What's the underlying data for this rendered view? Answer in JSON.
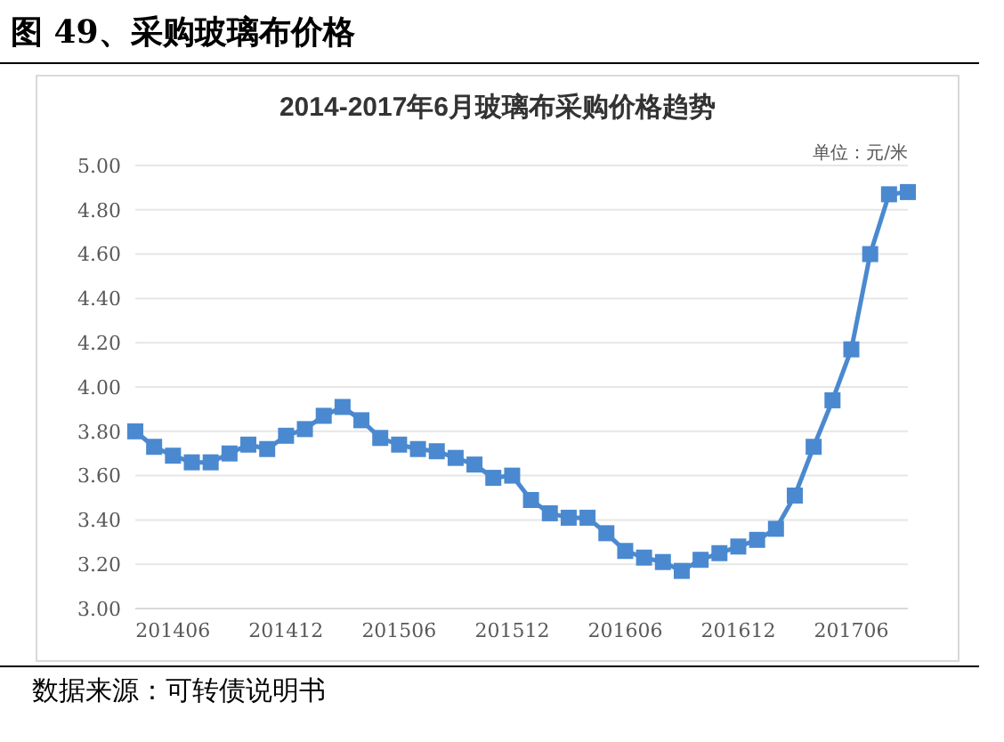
{
  "chart_data": {
    "type": "line",
    "title": "图 49、采购玻璃布价格",
    "subtitle": "2014-2017年6月玻璃布采购价格趋势",
    "annotations": [
      "单位：元/米",
      "数据来源：可转债说明书"
    ],
    "categories": [
      null,
      null,
      "201406",
      null,
      null,
      null,
      null,
      null,
      "201412",
      null,
      null,
      null,
      null,
      null,
      "201506",
      null,
      null,
      null,
      null,
      null,
      "201512",
      null,
      null,
      null,
      null,
      null,
      "201606",
      null,
      null,
      null,
      null,
      null,
      "201612",
      null,
      null,
      null,
      null,
      null,
      "201706",
      null,
      null,
      null
    ],
    "series": [
      {
        "color": "#4a89d0",
        "values": [
          3.8,
          3.73,
          3.69,
          3.66,
          3.66,
          3.7,
          3.74,
          3.72,
          3.78,
          3.81,
          3.87,
          3.91,
          3.85,
          3.77,
          3.74,
          3.72,
          3.71,
          3.68,
          3.65,
          3.59,
          3.6,
          3.49,
          3.43,
          3.41,
          3.41,
          3.34,
          3.26,
          3.23,
          3.21,
          3.17,
          3.22,
          3.25,
          3.28,
          3.31,
          3.36,
          3.51,
          3.73,
          3.94,
          4.17,
          4.6,
          4.87,
          4.88
        ]
      }
    ],
    "ylim": [
      3,
      5
    ],
    "yticks": [
      {
        "value": 3,
        "label": "3.00"
      },
      {
        "value": 3.2,
        "label": "3.20"
      },
      {
        "value": 3.4,
        "label": "3.40"
      },
      {
        "value": 3.6,
        "label": "3.60"
      },
      {
        "value": 3.8,
        "label": "3.80"
      },
      {
        "value": 4,
        "label": "4.00"
      },
      {
        "value": 4.2,
        "label": "4.20"
      },
      {
        "value": 4.4,
        "label": "4.40"
      },
      {
        "value": 4.6,
        "label": "4.60"
      },
      {
        "value": 4.8,
        "label": "4.80"
      },
      {
        "value": 5,
        "label": "5.00"
      }
    ],
    "grid": "y",
    "legend": false,
    "marker": "square",
    "line_style": "solid"
  }
}
